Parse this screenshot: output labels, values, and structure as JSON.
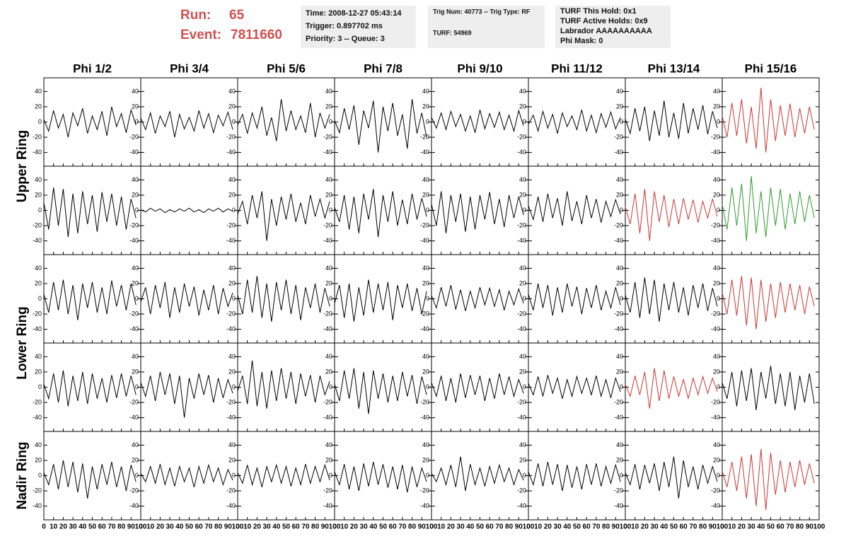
{
  "header": {
    "run_label": "Run:",
    "run": 65,
    "event_label": "Event:",
    "event": 7811660,
    "box1": [
      "Time: 2008-12-27 05:43:14",
      "Trigger: 0.897702 ms",
      "Priority: 3 -- Queue: 3"
    ],
    "box2": [
      "Trig Num: 40773 -- Trig Type: RF",
      "TURF: 54969"
    ],
    "box3": [
      "TURF This Hold: 0x1",
      "TURF Active Holds: 0x9",
      "Labrador AAAAAAAAAA",
      "Phi Mask: 0"
    ]
  },
  "chart_data": {
    "type": "line",
    "columns": [
      "Phi 1/2",
      "Phi 3/4",
      "Phi 5/6",
      "Phi 7/8",
      "Phi 9/10",
      "Phi 11/12",
      "Phi 13/14",
      "Phi 15/16"
    ],
    "row_labels": [
      "Upper Ring",
      "Lower Ring",
      "Nadir Ring"
    ],
    "xlim": [
      0,
      100
    ],
    "ylim": [
      -58,
      58
    ],
    "xticks": [
      0,
      10,
      20,
      30,
      40,
      50,
      60,
      70,
      80,
      90,
      100
    ],
    "yticks": [
      -40,
      -20,
      0,
      20,
      40
    ],
    "x": [
      0,
      5,
      10,
      15,
      20,
      25,
      30,
      35,
      40,
      45,
      50,
      55,
      60,
      65,
      70,
      75,
      80,
      85,
      90,
      95
    ],
    "panels": [
      [
        {
          "color": "#000000",
          "values": [
            3,
            -12,
            15,
            -8,
            10,
            -20,
            12,
            -5,
            18,
            -15,
            8,
            -10,
            14,
            -18,
            20,
            -6,
            11,
            -14,
            16,
            -4
          ]
        },
        {
          "color": "#000000",
          "values": [
            5,
            -10,
            12,
            -15,
            8,
            -6,
            14,
            -20,
            10,
            -9,
            6,
            -12,
            15,
            -8,
            11,
            -14,
            9,
            -5,
            13,
            -10
          ]
        },
        {
          "color": "#000000",
          "values": [
            -4,
            10,
            -15,
            12,
            -8,
            20,
            -18,
            6,
            -25,
            30,
            -12,
            15,
            -10,
            8,
            -14,
            25,
            -20,
            12,
            -8,
            10
          ]
        },
        {
          "color": "#000000",
          "values": [
            2,
            -14,
            18,
            -10,
            22,
            -30,
            15,
            -8,
            28,
            -40,
            20,
            -12,
            25,
            -18,
            10,
            -35,
            30,
            -15,
            12,
            -20
          ]
        },
        {
          "color": "#000000",
          "values": [
            6,
            -8,
            12,
            -10,
            14,
            -6,
            10,
            -12,
            8,
            -14,
            16,
            -9,
            11,
            -7,
            13,
            -10,
            9,
            -12,
            15,
            -5
          ]
        },
        {
          "color": "#000000",
          "values": [
            -3,
            9,
            -12,
            14,
            -8,
            10,
            -15,
            12,
            -6,
            8,
            -10,
            16,
            -12,
            9,
            -14,
            11,
            -7,
            13,
            -9,
            6
          ]
        },
        {
          "color": "#000000",
          "values": [
            4,
            -15,
            18,
            -12,
            20,
            -25,
            15,
            -18,
            28,
            -20,
            12,
            -22,
            25,
            -15,
            18,
            -10,
            22,
            -16,
            14,
            -8
          ]
        },
        {
          "color": "#cc3333",
          "values": [
            8,
            -20,
            25,
            -18,
            30,
            -28,
            20,
            -35,
            45,
            -40,
            30,
            -25,
            22,
            -18,
            24,
            -20,
            18,
            -15,
            20,
            -10
          ]
        }
      ],
      [
        {
          "color": "#000000",
          "values": [
            10,
            -25,
            30,
            -20,
            28,
            -35,
            22,
            -30,
            25,
            -18,
            20,
            -28,
            24,
            -15,
            22,
            -20,
            18,
            -25,
            15,
            -10
          ]
        },
        {
          "color": "#000000",
          "values": [
            1,
            -2,
            3,
            -1,
            2,
            -3,
            1,
            -2,
            2,
            -1,
            3,
            -2,
            1,
            -3,
            2,
            -1,
            3,
            -2,
            2,
            -1
          ]
        },
        {
          "color": "#000000",
          "values": [
            -5,
            12,
            -18,
            20,
            -10,
            25,
            -40,
            15,
            -20,
            18,
            -12,
            22,
            -15,
            10,
            -18,
            20,
            -8,
            15,
            -10,
            12
          ]
        },
        {
          "color": "#000000",
          "values": [
            4,
            -15,
            20,
            -25,
            18,
            -30,
            22,
            -12,
            28,
            -35,
            20,
            -15,
            25,
            -20,
            14,
            -18,
            22,
            -12,
            16,
            -8
          ]
        },
        {
          "color": "#000000",
          "values": [
            8,
            -20,
            25,
            -30,
            20,
            -15,
            22,
            -28,
            18,
            -25,
            20,
            -12,
            24,
            -18,
            15,
            -22,
            20,
            -10,
            18,
            -6
          ]
        },
        {
          "color": "#000000",
          "values": [
            6,
            -12,
            18,
            -15,
            22,
            -10,
            16,
            -20,
            25,
            -14,
            12,
            -18,
            20,
            -10,
            15,
            -16,
            12,
            -8,
            14,
            -5
          ]
        },
        {
          "color": "#cc3333",
          "values": [
            5,
            -18,
            22,
            -30,
            28,
            -40,
            25,
            -15,
            20,
            -22,
            15,
            -18,
            16,
            -12,
            14,
            -16,
            12,
            -10,
            15,
            -8
          ]
        },
        {
          "color": "#2e9b2e",
          "values": [
            8,
            -25,
            30,
            -20,
            35,
            -40,
            45,
            -30,
            25,
            -35,
            30,
            -20,
            28,
            -25,
            22,
            -18,
            25,
            -15,
            20,
            -10
          ]
        }
      ],
      [
        {
          "color": "#000000",
          "values": [
            6,
            -18,
            22,
            -15,
            25,
            -20,
            18,
            -28,
            20,
            -12,
            22,
            -18,
            15,
            -20,
            24,
            -10,
            18,
            -15,
            20,
            -8
          ]
        },
        {
          "color": "#000000",
          "values": [
            -4,
            15,
            -20,
            18,
            -12,
            22,
            -25,
            15,
            -18,
            20,
            -10,
            16,
            -22,
            12,
            -15,
            18,
            -20,
            14,
            -10,
            8
          ]
        },
        {
          "color": "#000000",
          "values": [
            5,
            -20,
            25,
            -18,
            30,
            -25,
            20,
            -30,
            22,
            -15,
            25,
            -20,
            18,
            -28,
            15,
            -12,
            20,
            -18,
            14,
            -10
          ]
        },
        {
          "color": "#000000",
          "values": [
            -6,
            18,
            -25,
            20,
            -30,
            15,
            -22,
            25,
            -18,
            20,
            -15,
            22,
            -28,
            18,
            -12,
            20,
            -16,
            14,
            -20,
            10
          ]
        },
        {
          "color": "#000000",
          "values": [
            4,
            -12,
            15,
            -10,
            18,
            -14,
            12,
            -16,
            10,
            -12,
            15,
            -8,
            14,
            -10,
            12,
            -15,
            10,
            -8,
            13,
            -6
          ]
        },
        {
          "color": "#000000",
          "values": [
            6,
            -15,
            20,
            -12,
            18,
            -22,
            15,
            -18,
            20,
            -10,
            16,
            -20,
            14,
            -12,
            18,
            -15,
            10,
            -12,
            15,
            -8
          ]
        },
        {
          "color": "#000000",
          "values": [
            5,
            -18,
            22,
            -25,
            28,
            -20,
            25,
            -30,
            20,
            -15,
            22,
            -18,
            15,
            -22,
            18,
            -12,
            20,
            -16,
            14,
            -10
          ]
        },
        {
          "color": "#cc3333",
          "values": [
            8,
            -20,
            25,
            -22,
            30,
            -35,
            28,
            -40,
            25,
            -30,
            20,
            -25,
            22,
            -18,
            20,
            -15,
            18,
            -20,
            16,
            -10
          ]
        }
      ],
      [
        {
          "color": "#000000",
          "values": [
            4,
            -15,
            18,
            -20,
            22,
            -25,
            15,
            -18,
            20,
            -22,
            18,
            -15,
            12,
            -20,
            16,
            -14,
            18,
            -12,
            15,
            -10
          ]
        },
        {
          "color": "#000000",
          "values": [
            6,
            -12,
            15,
            -18,
            20,
            -10,
            18,
            -22,
            15,
            -40,
            12,
            -15,
            18,
            -10,
            16,
            -20,
            12,
            -14,
            10,
            -8
          ]
        },
        {
          "color": "#000000",
          "values": [
            -5,
            15,
            -22,
            35,
            -25,
            20,
            -28,
            22,
            -18,
            25,
            -15,
            20,
            -22,
            18,
            -12,
            16,
            -20,
            15,
            -10,
            8
          ]
        },
        {
          "color": "#000000",
          "values": [
            4,
            -18,
            22,
            -15,
            25,
            -28,
            20,
            -35,
            22,
            -15,
            18,
            -20,
            15,
            -18,
            20,
            -12,
            16,
            -22,
            14,
            -10
          ]
        },
        {
          "color": "#000000",
          "values": [
            6,
            -12,
            15,
            -18,
            12,
            -20,
            18,
            -14,
            16,
            -10,
            15,
            -18,
            12,
            -15,
            18,
            -10,
            14,
            -12,
            10,
            -8
          ]
        },
        {
          "color": "#000000",
          "values": [
            5,
            -10,
            14,
            -12,
            16,
            -8,
            12,
            -15,
            10,
            -12,
            14,
            -8,
            12,
            -10,
            15,
            -12,
            10,
            -14,
            12,
            -6
          ]
        },
        {
          "color": "#cc3333",
          "values": [
            4,
            -12,
            15,
            -10,
            20,
            -28,
            25,
            -18,
            22,
            -15,
            14,
            -12,
            10,
            -15,
            12,
            -10,
            14,
            -8,
            12,
            -6
          ]
        },
        {
          "color": "#000000",
          "values": [
            6,
            -15,
            20,
            -25,
            22,
            -18,
            25,
            -30,
            20,
            -15,
            28,
            -22,
            18,
            -25,
            20,
            -30,
            15,
            -20,
            18,
            -22
          ]
        }
      ],
      [
        {
          "color": "#000000",
          "values": [
            4,
            -12,
            15,
            -18,
            20,
            -15,
            18,
            -22,
            16,
            -30,
            12,
            -18,
            15,
            -12,
            18,
            -15,
            12,
            -20,
            14,
            -8
          ]
        },
        {
          "color": "#000000",
          "values": [
            3,
            -8,
            12,
            -10,
            15,
            -12,
            10,
            -14,
            12,
            -8,
            10,
            -15,
            12,
            -10,
            14,
            -8,
            10,
            -12,
            8,
            -6
          ]
        },
        {
          "color": "#000000",
          "values": [
            4,
            -10,
            14,
            -12,
            10,
            -15,
            12,
            -8,
            14,
            -10,
            12,
            -14,
            10,
            -12,
            15,
            -10,
            12,
            -8,
            14,
            -6
          ]
        },
        {
          "color": "#000000",
          "values": [
            5,
            -12,
            15,
            -18,
            12,
            -20,
            16,
            -14,
            18,
            -12,
            15,
            -16,
            12,
            -18,
            14,
            -22,
            12,
            -15,
            10,
            -8
          ]
        },
        {
          "color": "#000000",
          "values": [
            3,
            -8,
            10,
            -12,
            14,
            -15,
            25,
            -20,
            15,
            -12,
            10,
            -14,
            12,
            -10,
            14,
            -8,
            10,
            -12,
            8,
            -6
          ]
        },
        {
          "color": "#000000",
          "values": [
            5,
            -12,
            16,
            -14,
            18,
            -12,
            15,
            -20,
            14,
            -16,
            12,
            -18,
            15,
            -12,
            16,
            -14,
            12,
            -10,
            14,
            -8
          ]
        },
        {
          "color": "#000000",
          "values": [
            4,
            -12,
            15,
            -18,
            14,
            -10,
            16,
            -20,
            18,
            -15,
            25,
            -30,
            20,
            -15,
            12,
            -18,
            14,
            -10,
            12,
            -8
          ]
        },
        {
          "color": "#cc3333",
          "values": [
            6,
            -15,
            18,
            -20,
            25,
            -30,
            28,
            -40,
            35,
            -45,
            30,
            -25,
            20,
            -22,
            18,
            -15,
            20,
            -12,
            16,
            -10
          ]
        }
      ]
    ]
  }
}
